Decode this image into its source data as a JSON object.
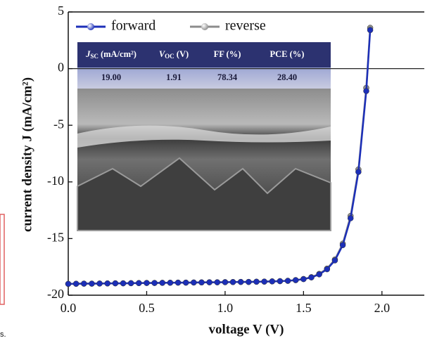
{
  "chart_data": {
    "type": "line",
    "xlabel": "voltage V (V)",
    "ylabel": "current density J (mA/cm²)",
    "x": [
      0,
      0.05,
      0.1,
      0.15,
      0.2,
      0.25,
      0.3,
      0.35,
      0.4,
      0.45,
      0.5,
      0.55,
      0.6,
      0.65,
      0.7,
      0.75,
      0.8,
      0.85,
      0.9,
      0.95,
      1.0,
      1.05,
      1.1,
      1.15,
      1.2,
      1.25,
      1.3,
      1.35,
      1.4,
      1.45,
      1.5,
      1.55,
      1.6,
      1.65,
      1.7,
      1.75,
      1.8,
      1.85,
      1.9,
      1.925
    ],
    "series": [
      {
        "name": "reverse",
        "color": "#8c8c8c",
        "values": [
          -19.0,
          -18.99,
          -18.98,
          -18.98,
          -18.97,
          -18.96,
          -18.95,
          -18.95,
          -18.94,
          -18.93,
          -18.92,
          -18.92,
          -18.91,
          -18.9,
          -18.89,
          -18.89,
          -18.88,
          -18.87,
          -18.86,
          -18.86,
          -18.85,
          -18.84,
          -18.83,
          -18.83,
          -18.81,
          -18.8,
          -18.78,
          -18.76,
          -18.73,
          -18.67,
          -18.57,
          -18.41,
          -18.12,
          -17.65,
          -16.85,
          -15.45,
          -13.0,
          -8.9,
          -1.7,
          3.6
        ]
      },
      {
        "name": "forward",
        "color": "#1c2fb8",
        "values": [
          -19.0,
          -18.99,
          -18.98,
          -18.98,
          -18.97,
          -18.96,
          -18.95,
          -18.95,
          -18.94,
          -18.93,
          -18.92,
          -18.92,
          -18.91,
          -18.9,
          -18.89,
          -18.89,
          -18.88,
          -18.87,
          -18.86,
          -18.86,
          -18.85,
          -18.84,
          -18.83,
          -18.83,
          -18.81,
          -18.8,
          -18.78,
          -18.76,
          -18.73,
          -18.67,
          -18.58,
          -18.43,
          -18.16,
          -17.71,
          -16.93,
          -15.58,
          -13.21,
          -9.12,
          -1.98,
          3.4
        ]
      }
    ],
    "xlim": [
      0,
      2.27
    ],
    "ylim": [
      -20,
      5
    ],
    "xticks": [
      {
        "value": 0,
        "label": "0.0"
      },
      0.5,
      {
        "value": 1,
        "label": "1.0"
      },
      1.5,
      {
        "value": 2,
        "label": "2.0"
      }
    ],
    "yticks": [
      -20,
      -15,
      -10,
      -5,
      0,
      5
    ],
    "zero_line": true,
    "legend": "upper left",
    "inset_table": {
      "headers": [
        {
          "symbol": "J",
          "sub": "SC",
          "unit": " (mA/cm²)"
        },
        {
          "symbol": "V",
          "sub": "OC",
          "unit": " (V)"
        },
        {
          "symbol": "",
          "sub": "",
          "unit": "FF (%)"
        },
        {
          "symbol": "",
          "sub": "",
          "unit": "PCE (%)"
        }
      ],
      "row": [
        "19.00",
        "1.91",
        "78.34",
        "28.40"
      ]
    }
  },
  "page_fragments": {
    "caption_tail": "s."
  }
}
